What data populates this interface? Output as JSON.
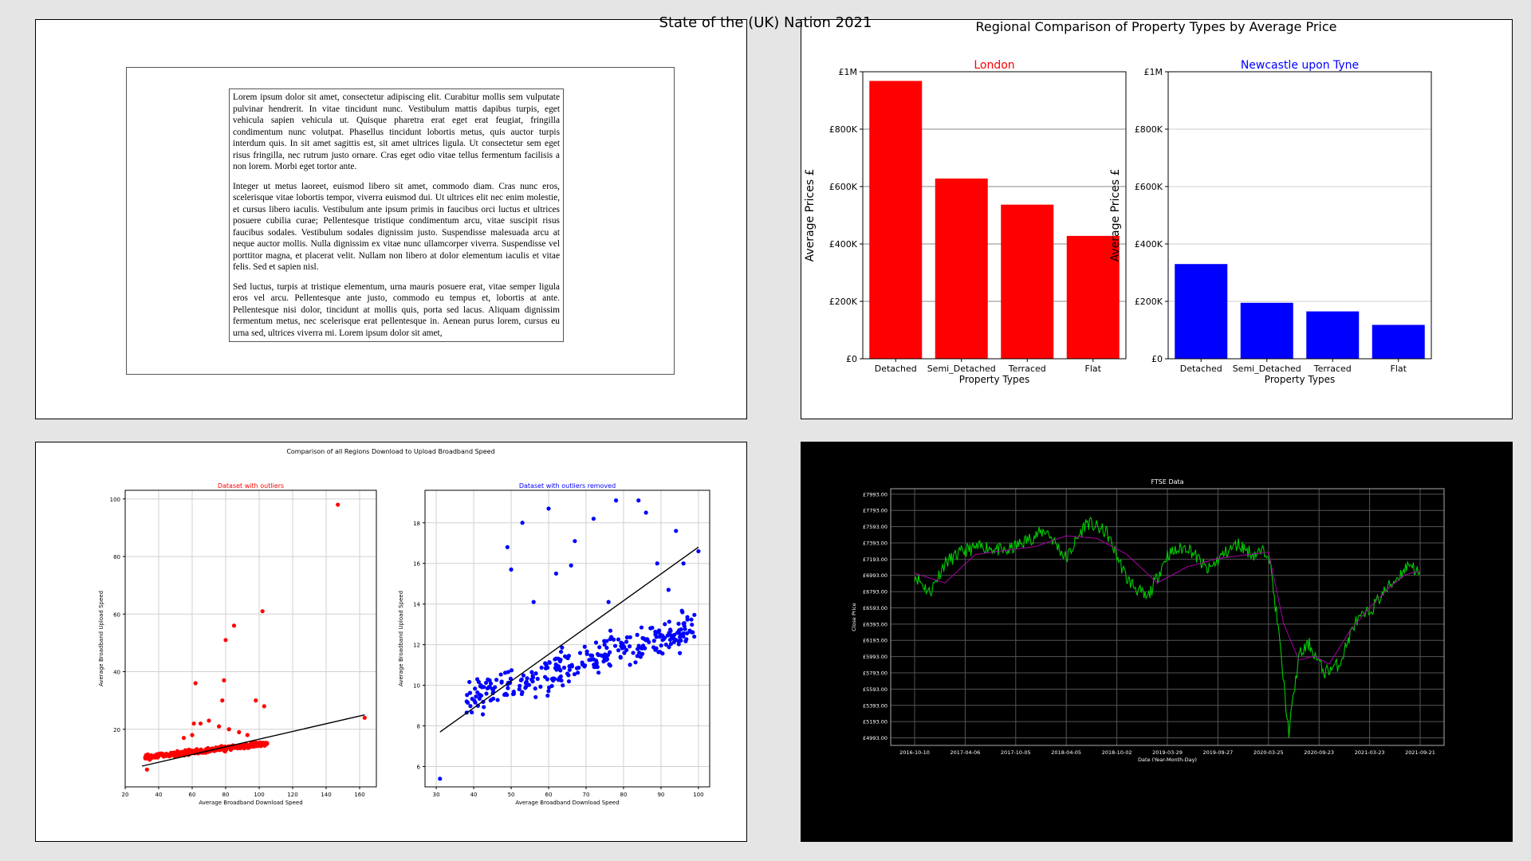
{
  "page": {
    "title": "State of the (UK) Nation 2021"
  },
  "document": {
    "paragraphs": [
      "Lorem ipsum dolor sit amet, consectetur adipiscing elit. Curabitur mollis sem vulputate pulvinar hendrerit. In vitae tincidunt nunc. Vestibulum mattis dapibus turpis, eget vehicula sapien vehicula ut. Quisque pharetra erat eget erat feugiat, fringilla condimentum nunc volutpat. Phasellus tincidunt lobortis metus, quis auctor turpis interdum quis. In sit amet sagittis est, sit amet ultrices ligula. Ut consectetur sem eget risus fringilla, nec rutrum justo ornare. Cras eget odio vitae tellus fermentum facilisis a non lorem. Morbi eget tortor ante.",
      "Integer ut metus laoreet, euismod libero sit amet, commodo diam. Cras nunc eros, scelerisque vitae lobortis tempor, viverra euismod dui. Ut ultrices elit nec enim molestie, et cursus libero iaculis. Vestibulum ante ipsum primis in faucibus orci luctus et ultrices posuere cubilia curae; Pellentesque tristique condimentum arcu, vitae suscipit risus faucibus sodales. Vestibulum sodales dignissim justo. Suspendisse malesuada arcu at neque auctor mollis. Nulla dignissim ex vitae nunc ullamcorper viverra. Suspendisse vel porttitor magna, et placerat velit. Nullam non libero at dolor elementum iaculis et vitae felis. Sed et sapien nisl.",
      "Sed luctus, turpis at tristique elementum, urna mauris posuere erat, vitae semper ligula eros vel arcu. Pellentesque ante justo, commodo eu tempus et, lobortis at ante. Pellentesque nisi dolor, tincidunt at mollis quis, porta sed lacus. Aliquam dignissim fermentum metus, nec scelerisque erat pellentesque in. Aenean purus lorem, cursus eu urna sed, ultrices viverra mi. Lorem ipsum dolor sit amet,"
    ]
  },
  "chart_data": [
    {
      "id": "regional-bars",
      "type": "bar",
      "title": "Regional Comparison of Property Types by Average Price",
      "yticks": [
        "£0",
        "£200K",
        "£400K",
        "£600K",
        "£800K",
        "£1M"
      ],
      "ylim": [
        0,
        1000000
      ],
      "subplots": [
        {
          "subtitle": "London",
          "subtitle_color": "#ff0000",
          "color": "#ff0000",
          "categories": [
            "Detached",
            "Semi_Detached",
            "Terraced",
            "Flat"
          ],
          "values": [
            968000,
            628000,
            537000,
            428000
          ],
          "xlabel": "Property Types",
          "ylabel": "Average Prices £",
          "grid": true
        },
        {
          "subtitle": "Newcastle upon Tyne",
          "subtitle_color": "#0000ff",
          "color": "#0000ff",
          "categories": [
            "Detached",
            "Semi_Detached",
            "Terraced",
            "Flat"
          ],
          "values": [
            330000,
            195000,
            165000,
            118000
          ],
          "xlabel": "Property Types",
          "ylabel": "Average Prices £",
          "grid": true
        }
      ]
    },
    {
      "id": "broadband-scatter",
      "type": "scatter",
      "title": "Comparison of all Regions Download to Upload Broadband Speed",
      "subplots": [
        {
          "subtitle": "Dataset with outliers",
          "subtitle_color": "#ff0000",
          "color": "#ff0000",
          "xlabel": "Average Broadband Download Speed",
          "ylabel": "Average Broadband Upload Speed",
          "xlim": [
            20,
            170
          ],
          "ylim": [
            0,
            103
          ],
          "xticks": [
            20,
            40,
            60,
            80,
            100,
            120,
            140,
            160
          ],
          "yticks": [
            20,
            40,
            60,
            80,
            100
          ],
          "trendline": [
            [
              30,
              7.2
            ],
            [
              163,
              25
            ]
          ],
          "outliers": [
            [
              147,
              98
            ],
            [
              102,
              61
            ],
            [
              85,
              56
            ],
            [
              80,
              51
            ],
            [
              79,
              37
            ],
            [
              62,
              36
            ],
            [
              78,
              30
            ],
            [
              98,
              30
            ],
            [
              103,
              28
            ],
            [
              163,
              24
            ],
            [
              61,
              22
            ],
            [
              65,
              22
            ],
            [
              70,
              23
            ],
            [
              76,
              21
            ],
            [
              82,
              20
            ],
            [
              88,
              19
            ],
            [
              93,
              18
            ],
            [
              55,
              17
            ],
            [
              60,
              18
            ],
            [
              33,
              6
            ]
          ],
          "cluster": {
            "n": 330,
            "xmin": 32,
            "xmax": 105,
            "ybase": 8.2,
            "slope": 0.065,
            "spread": 1.3
          },
          "grid": true
        },
        {
          "subtitle": "Dataset with outliers removed",
          "subtitle_color": "#0000ff",
          "color": "#0000ff",
          "xlabel": "Average Broadband Download Speed",
          "ylabel": "Average Broadband Upload Speed",
          "xlim": [
            27,
            103
          ],
          "ylim": [
            5,
            19.6
          ],
          "xticks": [
            30,
            40,
            50,
            60,
            70,
            80,
            90,
            100
          ],
          "yticks": [
            6,
            8,
            10,
            12,
            14,
            16,
            18
          ],
          "trendline": [
            [
              31,
              7.7
            ],
            [
              100,
              16.8
            ]
          ],
          "outliers": [
            [
              31,
              5.4
            ],
            [
              60,
              18.7
            ],
            [
              78,
              19.1
            ],
            [
              84,
              19.1
            ],
            [
              86,
              18.5
            ],
            [
              72,
              18.2
            ],
            [
              53,
              18
            ],
            [
              94,
              17.6
            ],
            [
              67,
              17.1
            ],
            [
              49,
              16.8
            ],
            [
              96,
              16
            ],
            [
              66,
              15.9
            ],
            [
              89,
              16
            ],
            [
              50,
              15.7
            ],
            [
              62,
              15.5
            ],
            [
              100,
              16.6
            ],
            [
              92,
              14.7
            ],
            [
              56,
              14.1
            ],
            [
              76,
              14.1
            ]
          ],
          "cluster": {
            "n": 300,
            "xmin": 38,
            "xmax": 99,
            "ybase": 7.2,
            "slope": 0.057,
            "spread": 0.9
          },
          "grid": true
        }
      ]
    },
    {
      "id": "ftse",
      "type": "line",
      "title": "FTSE Data",
      "xlabel": "Date (Year-Month-Day)",
      "ylabel": "Close Price",
      "xticks": [
        "2016-10-10",
        "2017-04-06",
        "2017-10-05",
        "2018-04-05",
        "2018-10-02",
        "2019-03-29",
        "2019-09-27",
        "2020-03-25",
        "2020-09-23",
        "2021-03-23",
        "2021-09-21"
      ],
      "yticks": [
        "£4993.00",
        "£5193.00",
        "£5393.00",
        "£5593.00",
        "£5793.00",
        "£5993.00",
        "£6193.00",
        "£6393.00",
        "£6593.00",
        "£6793.00",
        "£6993.00",
        "£7193.00",
        "£7393.00",
        "£7593.00",
        "£7793.00",
        "£7993.00"
      ],
      "ylim": [
        4900,
        8060
      ],
      "series": [
        {
          "color": "#00cc00",
          "x": [
            0,
            0.03,
            0.06,
            0.1,
            0.14,
            0.18,
            0.22,
            0.26,
            0.3,
            0.34,
            0.38,
            0.42,
            0.46,
            0.5,
            0.54,
            0.58,
            0.61,
            0.64,
            0.67,
            0.7,
            0.72,
            0.74,
            0.76,
            0.78,
            0.81,
            0.84,
            0.87,
            0.9,
            0.93,
            0.96,
            0.98,
            1.0
          ],
          "y": [
            7000,
            6780,
            7150,
            7300,
            7350,
            7280,
            7420,
            7550,
            7200,
            7650,
            7520,
            6950,
            6700,
            7250,
            7350,
            7050,
            7250,
            7380,
            7250,
            7300,
            6300,
            5050,
            6000,
            6150,
            5800,
            5900,
            6400,
            6550,
            6800,
            7000,
            7150,
            6980
          ]
        },
        {
          "color": "#aa00aa",
          "x": [
            0,
            0.06,
            0.12,
            0.18,
            0.24,
            0.3,
            0.36,
            0.42,
            0.48,
            0.54,
            0.6,
            0.66,
            0.7,
            0.73,
            0.76,
            0.79,
            0.82,
            0.86,
            0.9,
            0.94,
            0.97,
            1.0
          ],
          "y": [
            7020,
            6900,
            7250,
            7300,
            7350,
            7480,
            7450,
            7250,
            6900,
            7100,
            7200,
            7250,
            7280,
            6400,
            5950,
            6000,
            5900,
            6300,
            6600,
            6850,
            7000,
            7050
          ]
        }
      ]
    }
  ]
}
